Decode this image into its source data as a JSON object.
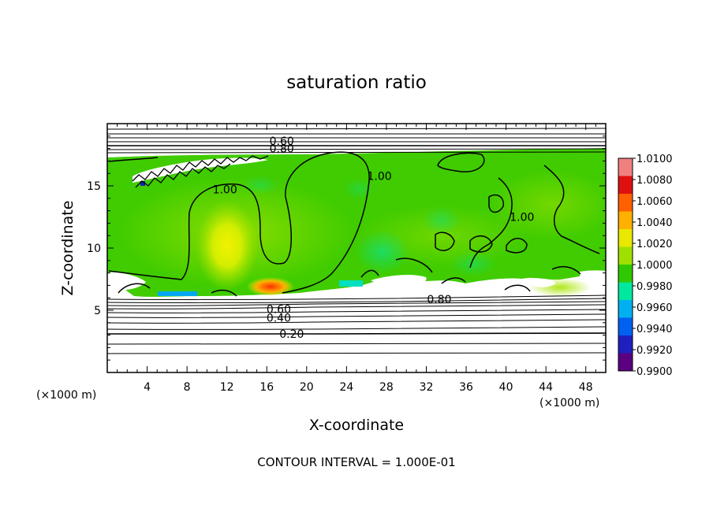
{
  "chart_data": {
    "type": "heatmap",
    "title": "saturation ratio",
    "xlabel": "X-coordinate",
    "ylabel": "Z-coordinate",
    "x_unit_left": "(×1000 m)",
    "x_unit_right": "(×1000 m)",
    "xlim": [
      0,
      50
    ],
    "ylim": [
      0,
      20
    ],
    "x_ticks": [
      "4",
      "8",
      "12",
      "16",
      "20",
      "24",
      "28",
      "32",
      "36",
      "40",
      "44",
      "48"
    ],
    "y_ticks": [
      "5",
      "10",
      "15"
    ],
    "colorbar_ticks": [
      "1.0100",
      "1.0080",
      "1.0060",
      "1.0040",
      "1.0020",
      "1.0000",
      "0.9980",
      "0.9960",
      "0.9940",
      "0.9920",
      "0.9900"
    ],
    "colorbar_colors": [
      "#f08080",
      "#e01010",
      "#ff6000",
      "#ffb000",
      "#e8e800",
      "#a0e000",
      "#30c800",
      "#00e8a0",
      "#00b0f0",
      "#0060f0",
      "#2020c0",
      "#5a0080"
    ],
    "contour_labels": [
      {
        "text": "0.20",
        "x": 18.5,
        "y": 3.1
      },
      {
        "text": "0.40",
        "x": 17.2,
        "y": 4.4
      },
      {
        "text": "0.60",
        "x": 17.2,
        "y": 5.1
      },
      {
        "text": "0.80",
        "x": 33.3,
        "y": 5.9
      },
      {
        "text": "1.00",
        "x": 11.8,
        "y": 14.7
      },
      {
        "text": "1.00",
        "x": 27.3,
        "y": 15.8
      },
      {
        "text": "1.00",
        "x": 41.6,
        "y": 12.5
      },
      {
        "text": "0.60",
        "x": 17.5,
        "y": 18.6
      },
      {
        "text": "0.80",
        "x": 17.5,
        "y": 18.0
      }
    ],
    "footer": "CONTOUR INTERVAL = 1.000E-01"
  }
}
